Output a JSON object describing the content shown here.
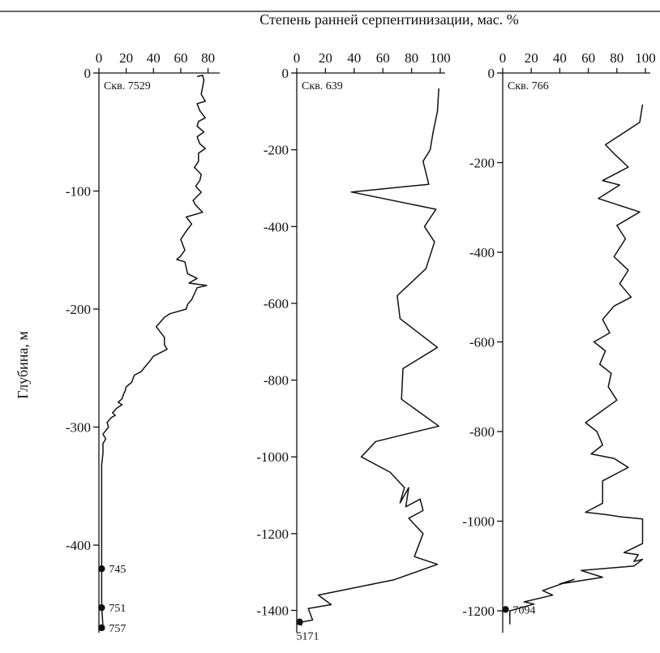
{
  "figure": {
    "top_label": "Степень ранней серпентинизации, мас. %",
    "y_label": "Глубина, м"
  },
  "chart_data": [
    {
      "type": "line",
      "well": "Скв. 7529",
      "x_axis": {
        "range": [
          0,
          85
        ],
        "ticks": [
          0,
          20,
          40,
          60,
          80
        ]
      },
      "y_axis": {
        "range": [
          -470,
          0
        ],
        "ticks": [
          0,
          -100,
          -200,
          -300,
          -400
        ]
      },
      "series": [
        {
          "points": [
            [
              72,
              -3
            ],
            [
              76,
              -2
            ],
            [
              77,
              -6
            ],
            [
              75,
              -18
            ],
            [
              78,
              -24
            ],
            [
              72,
              -26
            ],
            [
              74,
              -32
            ],
            [
              78,
              -38
            ],
            [
              73,
              -41
            ],
            [
              72,
              -45
            ],
            [
              77,
              -50
            ],
            [
              72,
              -54
            ],
            [
              74,
              -60
            ],
            [
              78,
              -64
            ],
            [
              73,
              -68
            ],
            [
              73,
              -75
            ],
            [
              70,
              -80
            ],
            [
              75,
              -86
            ],
            [
              74,
              -91
            ],
            [
              71,
              -96
            ],
            [
              75,
              -101
            ],
            [
              69,
              -108
            ],
            [
              71,
              -112
            ],
            [
              76,
              -118
            ],
            [
              64,
              -122
            ],
            [
              68,
              -128
            ],
            [
              64,
              -134
            ],
            [
              60,
              -141
            ],
            [
              63,
              -150
            ],
            [
              60,
              -155
            ],
            [
              57,
              -158
            ],
            [
              63,
              -160
            ],
            [
              65,
              -170
            ],
            [
              72,
              -174
            ],
            [
              66,
              -178
            ],
            [
              79,
              -180
            ],
            [
              72,
              -182
            ],
            [
              68,
              -192
            ],
            [
              65,
              -196
            ],
            [
              64,
              -200
            ],
            [
              52,
              -204
            ],
            [
              48,
              -207
            ],
            [
              42,
              -215
            ],
            [
              48,
              -224
            ],
            [
              48,
              -230
            ],
            [
              50,
              -234
            ],
            [
              40,
              -240
            ],
            [
              36,
              -246
            ],
            [
              33,
              -250
            ],
            [
              31,
              -253
            ],
            [
              26,
              -256
            ],
            [
              24,
              -262
            ],
            [
              20,
              -266
            ],
            [
              19,
              -270
            ],
            [
              18,
              -272
            ],
            [
              17,
              -276
            ],
            [
              14,
              -279
            ],
            [
              17,
              -281
            ],
            [
              13,
              -284
            ],
            [
              10,
              -288
            ],
            [
              12,
              -290
            ],
            [
              9,
              -292
            ],
            [
              6,
              -296
            ],
            [
              7,
              -300
            ],
            [
              3,
              -306
            ],
            [
              5,
              -310
            ],
            [
              3,
              -314
            ],
            [
              3,
              -322
            ],
            [
              2,
              -332
            ],
            [
              2,
              -360
            ],
            [
              2,
              -400
            ],
            [
              2,
              -420
            ],
            [
              2,
              -450
            ],
            [
              3,
              -470
            ]
          ]
        }
      ],
      "samples": [
        {
          "label": "745",
          "x": 2,
          "y": -420
        },
        {
          "label": "751",
          "x": 2,
          "y": -453
        },
        {
          "label": "757",
          "x": 2,
          "y": -470
        }
      ]
    },
    {
      "type": "line",
      "well": "Скв. 639",
      "x_axis": {
        "range": [
          0,
          100
        ],
        "ticks": [
          0,
          20,
          40,
          60,
          80,
          100
        ]
      },
      "y_axis": {
        "range": [
          -1440,
          0
        ],
        "ticks": [
          0,
          -200,
          -400,
          -600,
          -800,
          -1000,
          -1200,
          -1400
        ]
      },
      "series": [
        {
          "points": [
            [
              99,
              -40
            ],
            [
              98,
              -100
            ],
            [
              95,
              -155
            ],
            [
              93,
              -200
            ],
            [
              88,
              -230
            ],
            [
              92,
              -290
            ],
            [
              38,
              -310
            ],
            [
              97,
              -355
            ],
            [
              89,
              -400
            ],
            [
              96,
              -440
            ],
            [
              90,
              -510
            ],
            [
              70,
              -580
            ],
            [
              72,
              -640
            ],
            [
              98,
              -715
            ],
            [
              74,
              -770
            ],
            [
              73,
              -850
            ],
            [
              99,
              -920
            ],
            [
              55,
              -960
            ],
            [
              45,
              -1000
            ],
            [
              65,
              -1040
            ],
            [
              75,
              -1080
            ],
            [
              72,
              -1120
            ],
            [
              78,
              -1080
            ],
            [
              76,
              -1130
            ],
            [
              86,
              -1110
            ],
            [
              88,
              -1140
            ],
            [
              78,
              -1160
            ],
            [
              88,
              -1200
            ],
            [
              82,
              -1260
            ],
            [
              98,
              -1280
            ],
            [
              68,
              -1320
            ],
            [
              15,
              -1360
            ],
            [
              24,
              -1385
            ],
            [
              8,
              -1395
            ],
            [
              11,
              -1425
            ],
            [
              4,
              -1430
            ],
            [
              3,
              -1440
            ]
          ]
        }
      ],
      "samples": [
        {
          "label": "5171",
          "x": 2,
          "y": -1430
        }
      ]
    },
    {
      "type": "line",
      "well": "Скв. 766",
      "x_axis": {
        "range": [
          0,
          100
        ],
        "ticks": [
          0,
          20,
          40,
          60,
          80,
          100
        ]
      },
      "y_axis": {
        "range": [
          -1240,
          0
        ],
        "ticks": [
          0,
          -200,
          -400,
          -600,
          -800,
          -1000,
          -1200
        ]
      },
      "series": [
        {
          "points": [
            [
              98,
              -70
            ],
            [
              96,
              -110
            ],
            [
              72,
              -160
            ],
            [
              78,
              -180
            ],
            [
              88,
              -210
            ],
            [
              70,
              -240
            ],
            [
              82,
              -250
            ],
            [
              67,
              -280
            ],
            [
              96,
              -310
            ],
            [
              80,
              -340
            ],
            [
              86,
              -370
            ],
            [
              78,
              -410
            ],
            [
              88,
              -440
            ],
            [
              82,
              -470
            ],
            [
              90,
              -500
            ],
            [
              78,
              -520
            ],
            [
              70,
              -550
            ],
            [
              75,
              -580
            ],
            [
              64,
              -600
            ],
            [
              72,
              -620
            ],
            [
              68,
              -650
            ],
            [
              76,
              -670
            ],
            [
              74,
              -700
            ],
            [
              80,
              -730
            ],
            [
              58,
              -780
            ],
            [
              66,
              -800
            ],
            [
              70,
              -830
            ],
            [
              62,
              -850
            ],
            [
              78,
              -860
            ],
            [
              88,
              -880
            ],
            [
              70,
              -910
            ],
            [
              70,
              -960
            ],
            [
              58,
              -980
            ],
            [
              72,
              -985
            ],
            [
              82,
              -990
            ],
            [
              98,
              -995
            ],
            [
              98,
              -1050
            ],
            [
              85,
              -1070
            ],
            [
              95,
              -1075
            ],
            [
              92,
              -1090
            ],
            [
              98,
              -1085
            ],
            [
              92,
              -1100
            ],
            [
              55,
              -1110
            ],
            [
              70,
              -1125
            ],
            [
              40,
              -1140
            ],
            [
              50,
              -1130
            ],
            [
              28,
              -1155
            ],
            [
              35,
              -1165
            ],
            [
              15,
              -1180
            ],
            [
              22,
              -1185
            ],
            [
              5,
              -1200
            ],
            [
              5,
              -1230
            ]
          ]
        }
      ],
      "samples": [
        {
          "label": "7094",
          "x": 2,
          "y": -1197
        }
      ]
    }
  ]
}
